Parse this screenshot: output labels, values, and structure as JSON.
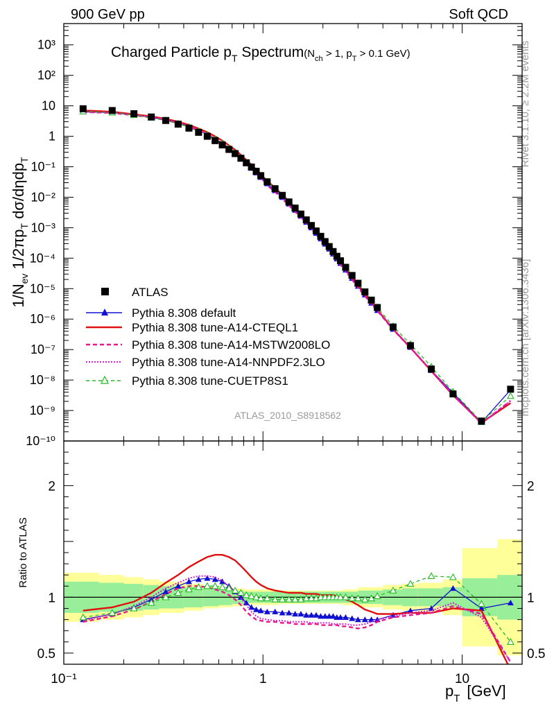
{
  "header": {
    "left": "900 GeV pp",
    "right": "Soft QCD"
  },
  "side_labels": {
    "rivet": "Rivet 3.1.10, ≥ 2.2M events",
    "mcplots": "mcplots.cern.ch [arXiv:1306.3436]"
  },
  "colors": {
    "atlas": "#000000",
    "default": "#1010d0",
    "cteql1": "#e01010",
    "mstw": "#e8188a",
    "nnpdf": "#d020d0",
    "cuetp8s1": "#22bb22",
    "band_green": "#99ee99",
    "band_yellow": "#ffff99"
  },
  "chart_data": [
    {
      "type": "scatter",
      "title": "Charged Particle p_T Spectrum",
      "title_main": "Charged Particle p",
      "title_main_sub": "T",
      "title_main_after": " Spectrum",
      "title_cut_1": "(N",
      "title_cut_1_sub": "ch",
      "title_cut_2": " > 1, p",
      "title_cut_2_sub": "T",
      "title_cut_3": " > 0.1 GeV)",
      "ylabel": "1/N_ev 1/2πp_T dσ/dηdp_T",
      "ylabel_parts": {
        "a": "1/N",
        "a_sub": "ev",
        "b": " 1/2πp",
        "b_sub": "T",
        "c": " dσ/dηdp",
        "c_sub": "T"
      },
      "yscale": "log",
      "xscale": "log",
      "xlim": [
        0.1,
        20
      ],
      "ylim": [
        1e-10,
        5000
      ],
      "y_tick_labels": [
        "10⁻¹⁰",
        "10⁻⁹",
        "10⁻⁸",
        "10⁻⁷",
        "10⁻⁶",
        "10⁻⁵",
        "10⁻⁴",
        "10⁻³",
        "10⁻²",
        "10⁻¹",
        "1",
        "10",
        "10²",
        "10³"
      ],
      "watermark": "ATLAS_2010_S8918562",
      "legend_position": "left",
      "legend": [
        "ATLAS",
        "Pythia 8.308 default",
        "Pythia 8.308 tune-A14-CTEQL1",
        "Pythia 8.308 tune-A14-MSTW2008LO",
        "Pythia 8.308 tune-A14-NNPDF2.3LO",
        "Pythia 8.308 tune-CUETP8S1"
      ],
      "x": [
        0.125,
        0.175,
        0.225,
        0.275,
        0.325,
        0.375,
        0.425,
        0.475,
        0.525,
        0.575,
        0.625,
        0.675,
        0.725,
        0.775,
        0.825,
        0.875,
        0.925,
        0.975,
        1.05,
        1.15,
        1.25,
        1.35,
        1.45,
        1.55,
        1.65,
        1.75,
        1.85,
        1.95,
        2.05,
        2.15,
        2.25,
        2.35,
        2.45,
        2.6,
        2.8,
        3.0,
        3.25,
        3.5,
        3.75,
        4.5,
        5.5,
        7.0,
        9.0,
        12.5,
        17.5
      ],
      "series": [
        {
          "name": "ATLAS",
          "values": [
            8.0,
            7.0,
            5.5,
            4.3,
            3.3,
            2.5,
            1.85,
            1.35,
            1.0,
            0.72,
            0.52,
            0.37,
            0.27,
            0.19,
            0.135,
            0.098,
            0.071,
            0.051,
            0.032,
            0.019,
            0.0115,
            0.007,
            0.0044,
            0.0028,
            0.0018,
            0.00118,
            0.00078,
            0.00052,
            0.00035,
            0.00024,
            0.000165,
            0.000115,
            8.2e-05,
            5e-05,
            2.7e-05,
            1.5e-05,
            7.8e-06,
            4.2e-06,
            2.4e-06,
            5.5e-07,
            1.35e-07,
            2.3e-08,
            3.5e-09,
            4.5e-10,
            5e-09
          ]
        },
        {
          "name": "Pythia 8.308 default",
          "ratio": [
            0.8,
            0.85,
            0.91,
            0.98,
            1.05,
            1.1,
            1.14,
            1.16,
            1.17,
            1.16,
            1.14,
            1.1,
            1.05,
            1.0,
            0.95,
            0.91,
            0.89,
            0.88,
            0.87,
            0.87,
            0.86,
            0.86,
            0.85,
            0.85,
            0.84,
            0.84,
            0.84,
            0.83,
            0.83,
            0.83,
            0.83,
            0.82,
            0.82,
            0.82,
            0.81,
            0.8,
            0.8,
            0.8,
            0.8,
            0.84,
            0.88,
            0.9,
            1.08,
            0.9,
            0.95
          ]
        },
        {
          "name": "Pythia 8.308 tune-A14-CTEQL1",
          "ratio": [
            0.88,
            0.91,
            0.96,
            1.04,
            1.13,
            1.2,
            1.27,
            1.32,
            1.36,
            1.38,
            1.38,
            1.36,
            1.33,
            1.28,
            1.23,
            1.18,
            1.14,
            1.11,
            1.08,
            1.06,
            1.05,
            1.04,
            1.04,
            1.04,
            1.03,
            1.03,
            1.03,
            1.02,
            1.02,
            1.02,
            1.02,
            1.01,
            1.0,
            0.98,
            0.96,
            0.93,
            0.89,
            0.87,
            0.85,
            0.85,
            0.86,
            0.86,
            0.9,
            0.88,
            0.35
          ]
        },
        {
          "name": "Pythia 8.308 tune-A14-MSTW2008LO",
          "ratio": [
            0.78,
            0.83,
            0.89,
            0.96,
            1.03,
            1.08,
            1.1,
            1.1,
            1.09,
            1.07,
            1.05,
            1.02,
            0.98,
            0.93,
            0.87,
            0.83,
            0.8,
            0.79,
            0.78,
            0.78,
            0.77,
            0.77,
            0.76,
            0.76,
            0.76,
            0.76,
            0.76,
            0.75,
            0.75,
            0.75,
            0.75,
            0.75,
            0.74,
            0.74,
            0.73,
            0.72,
            0.73,
            0.75,
            0.78,
            0.82,
            0.84,
            0.86,
            0.92,
            0.85,
            0.42
          ]
        },
        {
          "name": "Pythia 8.308 tune-A14-NNPDF2.3LO",
          "ratio": [
            0.79,
            0.85,
            0.92,
            1.0,
            1.08,
            1.13,
            1.17,
            1.19,
            1.19,
            1.18,
            1.15,
            1.1,
            1.05,
            0.99,
            0.93,
            0.87,
            0.83,
            0.81,
            0.8,
            0.79,
            0.79,
            0.78,
            0.78,
            0.78,
            0.78,
            0.77,
            0.77,
            0.77,
            0.77,
            0.77,
            0.76,
            0.76,
            0.76,
            0.76,
            0.75,
            0.75,
            0.76,
            0.78,
            0.8,
            0.83,
            0.86,
            0.88,
            0.95,
            0.82,
            0.42
          ]
        },
        {
          "name": "Pythia 8.308 tune-CUETP8S1",
          "ratio": [
            0.82,
            0.86,
            0.9,
            0.95,
            1.0,
            1.04,
            1.07,
            1.09,
            1.1,
            1.1,
            1.09,
            1.08,
            1.06,
            1.04,
            1.02,
            1.01,
            1.0,
            0.99,
            0.99,
            0.98,
            0.98,
            0.98,
            0.98,
            0.98,
            0.99,
            0.99,
            0.99,
            1.0,
            1.0,
            1.0,
            1.0,
            1.0,
            1.0,
            1.0,
            0.99,
            0.99,
            0.98,
            0.99,
            1.01,
            1.06,
            1.12,
            1.19,
            1.18,
            0.94,
            0.6
          ]
        }
      ]
    },
    {
      "type": "scatter",
      "ylabel": "Ratio to ATLAS",
      "xlabel": "p_T [GeV]",
      "xlabel_parts": {
        "a": "p",
        "a_sub": "T",
        "b": "[GeV]"
      },
      "xscale": "log",
      "xlim": [
        0.1,
        20
      ],
      "ylim": [
        0.4,
        2.4
      ],
      "y_ticks": [
        0.5,
        1,
        2
      ],
      "y_tick_labels": [
        "0.5",
        "1",
        "2"
      ],
      "x_ticks": [
        0.1,
        1,
        10
      ],
      "x_tick_labels": [
        "10⁻¹",
        "1",
        "10"
      ],
      "reference_line": 1,
      "band_edges": [
        0.1,
        0.15,
        0.2,
        0.25,
        0.3,
        0.4,
        0.5,
        0.6,
        0.7,
        0.8,
        0.9,
        1.0,
        1.2,
        1.5,
        2.0,
        2.5,
        3.0,
        4.0,
        5.0,
        6.0,
        8.0,
        10.0,
        15.0,
        20.0
      ],
      "band_green": [
        0.14,
        0.13,
        0.12,
        0.11,
        0.1,
        0.09,
        0.08,
        0.07,
        0.06,
        0.05,
        0.05,
        0.05,
        0.05,
        0.05,
        0.05,
        0.05,
        0.06,
        0.07,
        0.08,
        0.08,
        0.09,
        0.17,
        0.2
      ],
      "band_yellow": [
        0.22,
        0.2,
        0.18,
        0.16,
        0.14,
        0.12,
        0.1,
        0.09,
        0.08,
        0.07,
        0.07,
        0.07,
        0.06,
        0.06,
        0.06,
        0.07,
        0.09,
        0.11,
        0.12,
        0.13,
        0.16,
        0.44,
        0.52
      ]
    }
  ]
}
